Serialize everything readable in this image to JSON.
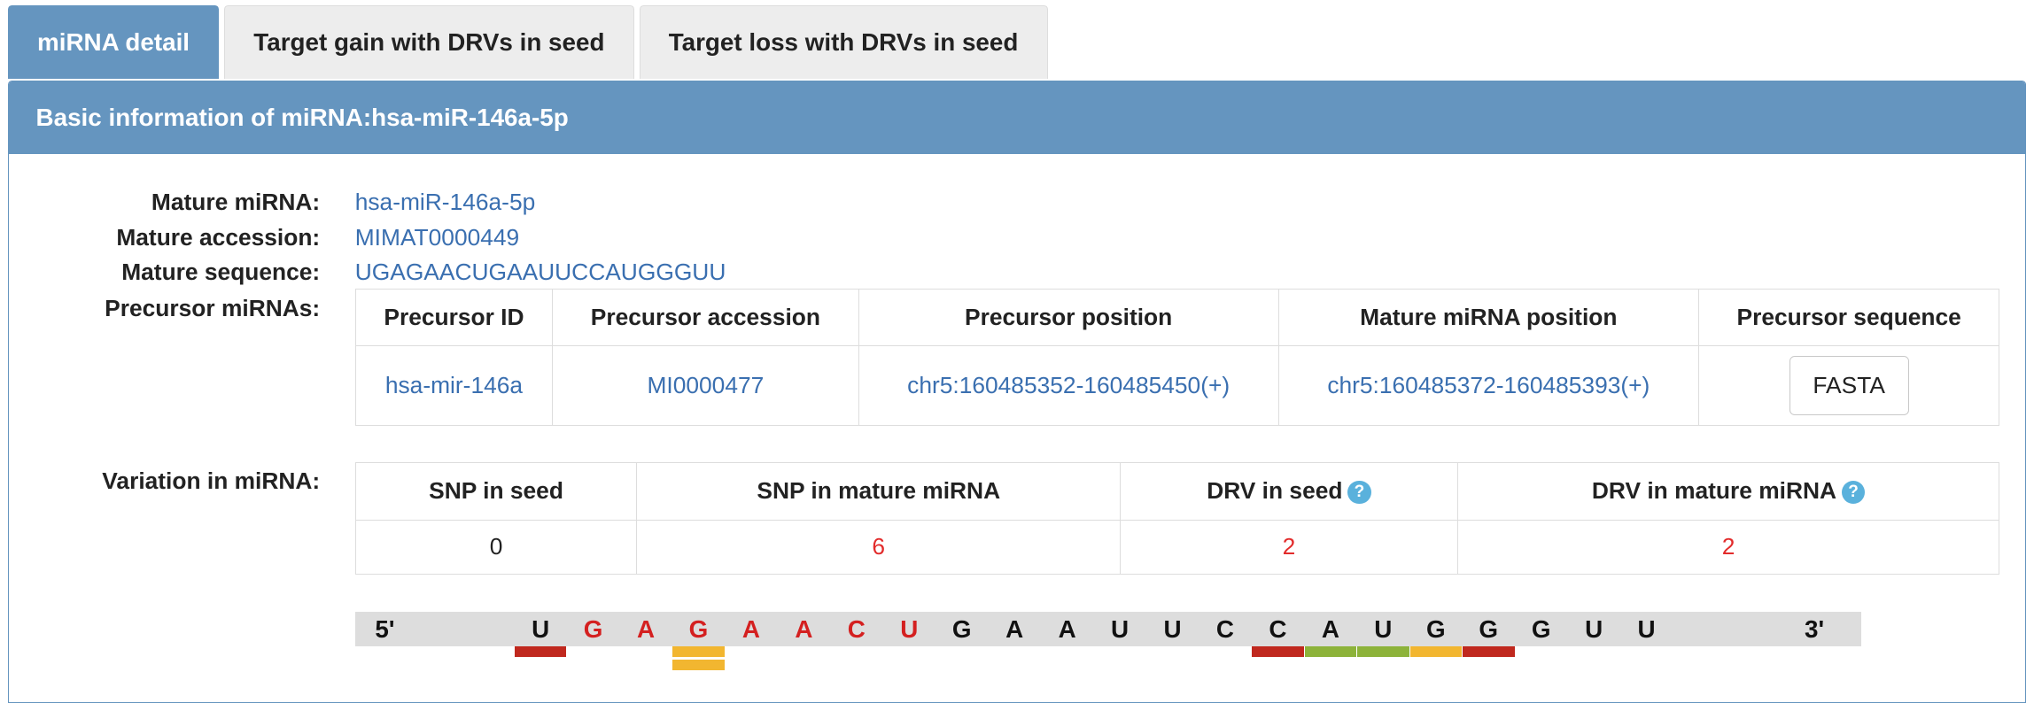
{
  "tabs": [
    {
      "label": "miRNA detail",
      "active": true
    },
    {
      "label": "Target gain with DRVs in seed",
      "active": false
    },
    {
      "label": "Target loss with DRVs in seed",
      "active": false
    }
  ],
  "panel": {
    "title": "Basic information of miRNA:hsa-miR-146a-5p"
  },
  "info": {
    "mature_label": "Mature miRNA:",
    "mature_value": "hsa-miR-146a-5p",
    "accession_label": "Mature accession:",
    "accession_value": "MIMAT0000449",
    "sequence_label": "Mature sequence:",
    "sequence_value": "UGAGAACUGAAUUCCAUGGGUU",
    "precursor_label": "Precursor miRNAs:",
    "variation_label": "Variation in miRNA:"
  },
  "precursor_table": {
    "headers": [
      "Precursor ID",
      "Precursor accession",
      "Precursor position",
      "Mature miRNA position",
      "Precursor sequence"
    ],
    "row": {
      "id": "hsa-mir-146a",
      "accession": "MI0000477",
      "position": "chr5:160485352-160485450(+)",
      "mature_position": "chr5:160485372-160485393(+)",
      "button": "FASTA"
    }
  },
  "variation_table": {
    "headers": [
      "SNP in seed",
      "SNP in mature miRNA",
      "DRV in seed",
      "DRV in mature miRNA"
    ],
    "row": {
      "snp_seed": "0",
      "snp_mature": "6",
      "drv_seed": "2",
      "drv_mature": "2"
    },
    "help_icon": "question-circle-icon"
  },
  "sequence_diagram": {
    "five_prime": "5'",
    "three_prime": "3'",
    "nucleotides": [
      {
        "base": "U",
        "color": "#111111"
      },
      {
        "base": "G",
        "color": "#d42020"
      },
      {
        "base": "A",
        "color": "#d42020"
      },
      {
        "base": "G",
        "color": "#d42020"
      },
      {
        "base": "A",
        "color": "#d42020"
      },
      {
        "base": "A",
        "color": "#d42020"
      },
      {
        "base": "C",
        "color": "#d42020"
      },
      {
        "base": "U",
        "color": "#d42020"
      },
      {
        "base": "G",
        "color": "#111111"
      },
      {
        "base": "A",
        "color": "#111111"
      },
      {
        "base": "A",
        "color": "#111111"
      },
      {
        "base": "U",
        "color": "#111111"
      },
      {
        "base": "U",
        "color": "#111111"
      },
      {
        "base": "C",
        "color": "#111111"
      },
      {
        "base": "C",
        "color": "#111111"
      },
      {
        "base": "A",
        "color": "#111111"
      },
      {
        "base": "U",
        "color": "#111111"
      },
      {
        "base": "G",
        "color": "#111111"
      },
      {
        "base": "G",
        "color": "#111111"
      },
      {
        "base": "G",
        "color": "#111111"
      },
      {
        "base": "U",
        "color": "#111111"
      },
      {
        "base": "U",
        "color": "#111111"
      }
    ],
    "markers": [
      {
        "index": 0,
        "row": 0,
        "color": "#c0281e"
      },
      {
        "index": 3,
        "row": 0,
        "color": "#f2b630"
      },
      {
        "index": 3,
        "row": 1,
        "color": "#f2b630"
      },
      {
        "index": 14,
        "row": 0,
        "color": "#c0281e"
      },
      {
        "index": 15,
        "row": 0,
        "color": "#8db33a"
      },
      {
        "index": 16,
        "row": 0,
        "color": "#8db33a"
      },
      {
        "index": 17,
        "row": 0,
        "color": "#f2b630"
      },
      {
        "index": 18,
        "row": 0,
        "color": "#c0281e"
      }
    ]
  }
}
